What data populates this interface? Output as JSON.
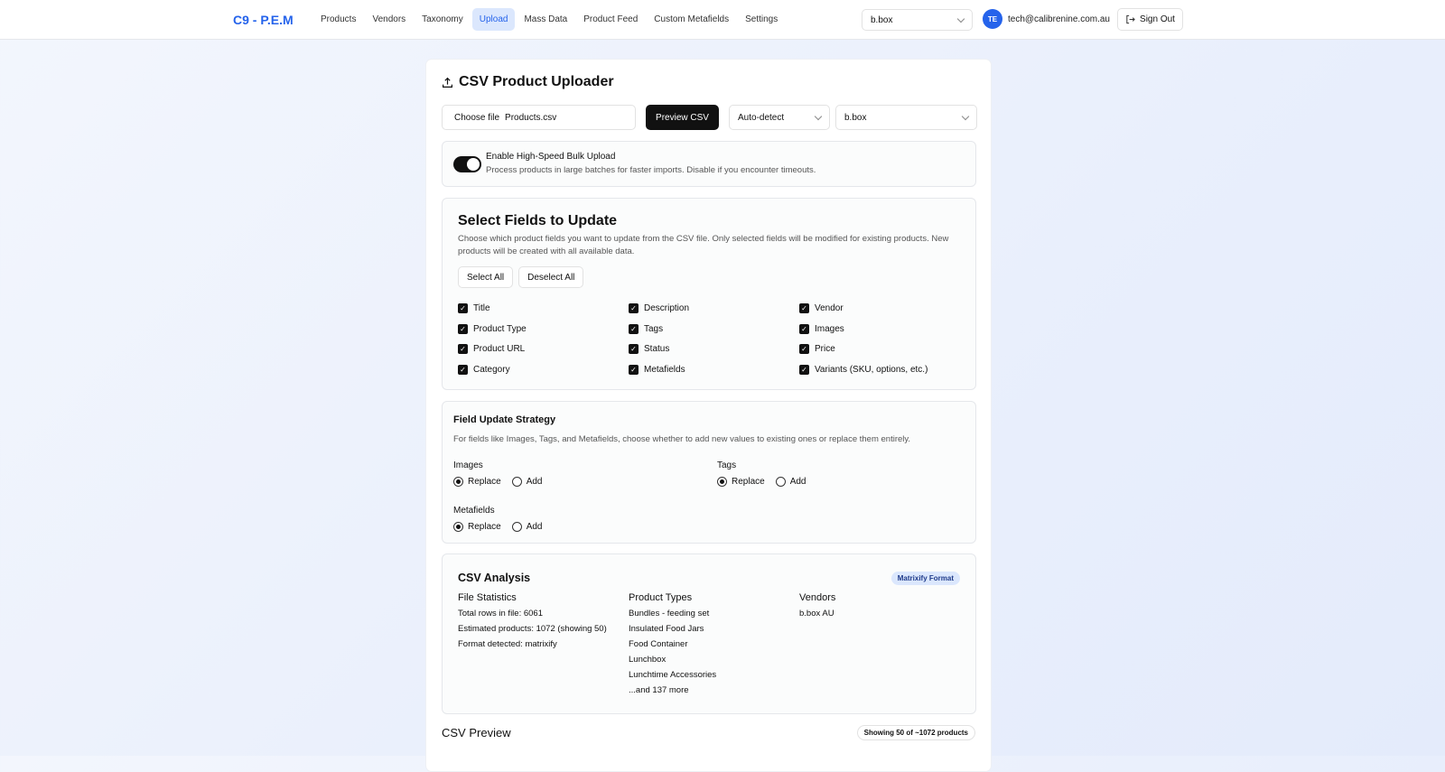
{
  "nav": {
    "logo": "C9 - P.E.M",
    "items": [
      {
        "label": "Products"
      },
      {
        "label": "Vendors"
      },
      {
        "label": "Taxonomy"
      },
      {
        "label": "Upload",
        "active": true
      },
      {
        "label": "Mass Data"
      },
      {
        "label": "Product Feed"
      },
      {
        "label": "Custom Metafields"
      },
      {
        "label": "Settings"
      }
    ],
    "store_select": "b.box",
    "avatar": "TE",
    "email": "tech@calibrenine.com.au",
    "sign_out": "Sign Out"
  },
  "uploader": {
    "title": "CSV Product Uploader",
    "choose_file": "Choose file",
    "file_name": "Products.csv",
    "preview_button": "Preview CSV",
    "format_select": "Auto-detect",
    "store_select": "b.box",
    "bulk": {
      "label": "Enable High-Speed Bulk Upload",
      "description": "Process products in large batches for faster imports. Disable if you encounter timeouts.",
      "enabled": true
    }
  },
  "fields": {
    "title": "Select Fields to Update",
    "description": "Choose which product fields you want to update from the CSV file. Only selected fields will be modified for existing products. New products will be created with all available data.",
    "select_all": "Select All",
    "deselect_all": "Deselect All",
    "items": [
      {
        "label": "Title",
        "checked": true
      },
      {
        "label": "Description",
        "checked": true
      },
      {
        "label": "Vendor",
        "checked": true
      },
      {
        "label": "Product Type",
        "checked": true
      },
      {
        "label": "Tags",
        "checked": true
      },
      {
        "label": "Images",
        "checked": true
      },
      {
        "label": "Product URL",
        "checked": true
      },
      {
        "label": "Status",
        "checked": true
      },
      {
        "label": "Price",
        "checked": true
      },
      {
        "label": "Category",
        "checked": true
      },
      {
        "label": "Metafields",
        "checked": true
      },
      {
        "label": "Variants (SKU, options, etc.)",
        "checked": true
      }
    ]
  },
  "strategy": {
    "title": "Field Update Strategy",
    "description": "For fields like Images, Tags, and Metafields, choose whether to add new values to existing ones or replace them entirely.",
    "replace": "Replace",
    "add": "Add",
    "groups": [
      {
        "label": "Images",
        "selected": "Replace"
      },
      {
        "label": "Tags",
        "selected": "Replace"
      },
      {
        "label": "Metafields",
        "selected": "Replace"
      }
    ]
  },
  "analysis": {
    "title": "CSV Analysis",
    "badge": "Matrixify Format",
    "file_stats": {
      "heading": "File Statistics",
      "lines": [
        "Total rows in file: 6061",
        "Estimated products: 1072 (showing 50)",
        "Format detected: matrixify"
      ]
    },
    "product_types": {
      "heading": "Product Types",
      "lines": [
        "Bundles - feeding set",
        "Insulated Food Jars",
        "Food Container",
        "Lunchbox",
        "Lunchtime Accessories",
        "...and 137 more"
      ]
    },
    "vendors": {
      "heading": "Vendors",
      "lines": [
        "b.box AU"
      ]
    }
  },
  "preview": {
    "title": "CSV Preview",
    "badge": "Showing 50 of ~1072 products"
  }
}
